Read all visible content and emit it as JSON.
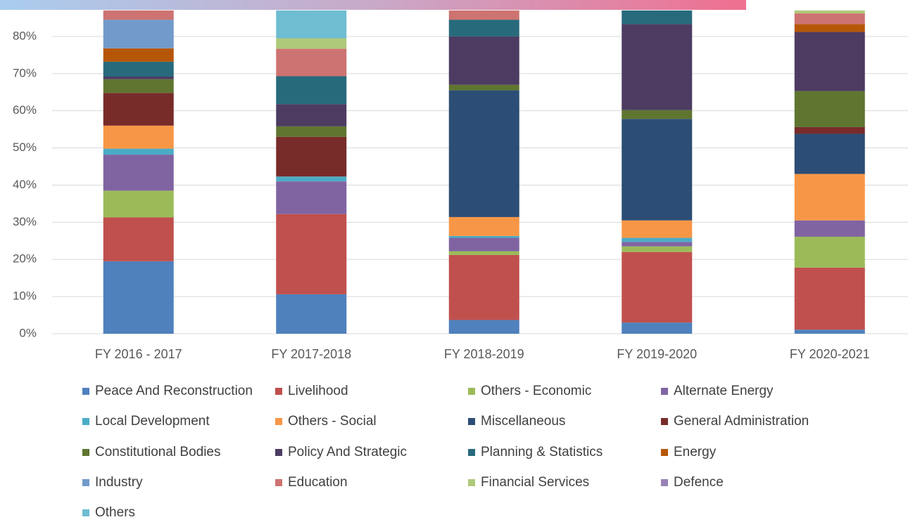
{
  "chart_data": {
    "type": "bar",
    "stacked": true,
    "categories": [
      "FY 2016 - 2017",
      "FY 2017-2018",
      "FY 2018-2019",
      "FY 2019-2020",
      "FY 2020-2021"
    ],
    "ylim": [
      0,
      90
    ],
    "yticks": [
      {
        "value": 0,
        "label": "0%"
      },
      {
        "value": 10,
        "label": "10%"
      },
      {
        "value": 20,
        "label": "20%"
      },
      {
        "value": 30,
        "label": "30%"
      },
      {
        "value": 40,
        "label": "40%"
      },
      {
        "value": 50,
        "label": "50%"
      },
      {
        "value": 60,
        "label": "60%"
      },
      {
        "value": 70,
        "label": "70%"
      },
      {
        "value": 80,
        "label": "80%"
      }
    ],
    "grid": true,
    "series": [
      {
        "name": "Peace And Reconstruction",
        "color": "#4f81bd",
        "values": [
          19.5,
          10.6,
          3.7,
          3.0,
          1.1
        ]
      },
      {
        "name": "Livelihood",
        "color": "#c0504d",
        "values": [
          11.8,
          21.6,
          17.5,
          19.0,
          16.7
        ]
      },
      {
        "name": "Others - Economic",
        "color": "#9bbb59",
        "values": [
          7.2,
          0,
          1.0,
          1.5,
          8.3
        ]
      },
      {
        "name": "Alternate Energy",
        "color": "#8064a2",
        "values": [
          9.7,
          8.8,
          3.6,
          1.2,
          4.4
        ]
      },
      {
        "name": "Local Development",
        "color": "#4bacc6",
        "values": [
          1.6,
          1.3,
          0.5,
          1.1,
          0
        ]
      },
      {
        "name": "Others - Social",
        "color": "#f79646",
        "values": [
          6.2,
          0,
          5.1,
          4.7,
          12.5
        ]
      },
      {
        "name": "Miscellaneous",
        "color": "#2c4d75",
        "values": [
          0,
          0,
          34.1,
          27.3,
          10.8
        ]
      },
      {
        "name": "General Administration",
        "color": "#772c2a",
        "values": [
          8.8,
          10.7,
          0,
          0,
          1.8
        ]
      },
      {
        "name": "Constitutional Bodies",
        "color": "#5f7530",
        "values": [
          3.7,
          2.8,
          1.5,
          2.4,
          9.7
        ]
      },
      {
        "name": "Policy And Strategic",
        "color": "#4d3b62",
        "values": [
          0.7,
          6.0,
          13.0,
          23.1,
          15.9
        ]
      },
      {
        "name": "Planning & Statistics",
        "color": "#276a7c",
        "values": [
          4.0,
          7.5,
          4.5,
          3.7,
          0
        ]
      },
      {
        "name": "Energy",
        "color": "#b65708",
        "values": [
          3.6,
          0,
          0,
          0,
          2.1
        ]
      },
      {
        "name": "Industry",
        "color": "#729aca",
        "values": [
          7.7,
          0,
          0,
          0,
          0
        ]
      },
      {
        "name": "Education",
        "color": "#cd7371",
        "values": [
          2.5,
          7.4,
          2.5,
          0,
          2.9
        ]
      },
      {
        "name": "Financial Services",
        "color": "#afc97a",
        "values": [
          0,
          2.8,
          0,
          0,
          0.8
        ]
      },
      {
        "name": "Defence",
        "color": "#9983b5",
        "values": [
          0,
          0,
          0,
          0,
          0
        ]
      },
      {
        "name": "Others",
        "color": "#6fbdd1",
        "values": [
          0,
          7.5,
          0,
          0,
          0
        ]
      }
    ]
  }
}
